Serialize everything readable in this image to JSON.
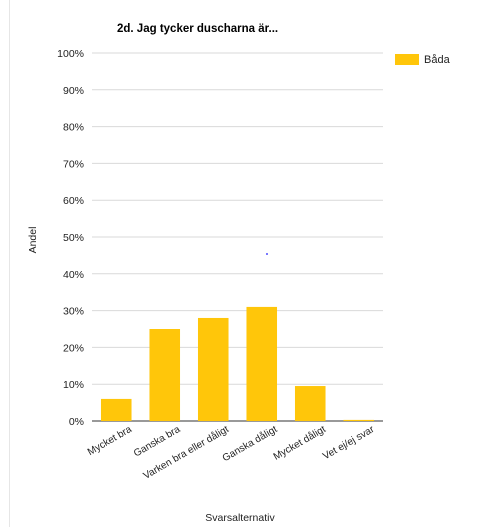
{
  "chart_data": {
    "type": "bar",
    "title": "2d. Jag tycker duscharna är...",
    "xlabel": "Svarsalternativ",
    "ylabel": "Andel",
    "categories": [
      "Mycket bra",
      "Ganska bra",
      "Varken bra eller dåligt",
      "Ganska dåligt",
      "Mycket dåligt",
      "Vet ej/ej svar"
    ],
    "series": [
      {
        "name": "Båda",
        "values": [
          6,
          25,
          28,
          31,
          9.5,
          0.3
        ],
        "color": "#ffc60a"
      }
    ],
    "ylim": [
      0,
      100
    ],
    "yticks": [
      "0%",
      "10%",
      "20%",
      "30%",
      "40%",
      "50%",
      "60%",
      "70%",
      "80%",
      "90%",
      "100%"
    ],
    "grid": true,
    "legend_position": "top-right"
  }
}
